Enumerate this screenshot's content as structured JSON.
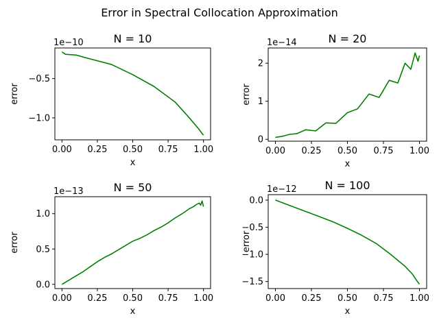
{
  "figure": {
    "suptitle": "Error in Spectral Collocation Approximation"
  },
  "colors": {
    "line": "#008000",
    "axes": "#000000",
    "background": "#ffffff"
  },
  "chart_data": [
    {
      "type": "line",
      "title": "N = 10",
      "xlabel": "x",
      "ylabel": "error",
      "offset_text": "1e−10",
      "xlim": [
        -0.05,
        1.05
      ],
      "ylim": [
        -1.28,
        -0.11
      ],
      "xticks": [
        0.0,
        0.25,
        0.5,
        0.75,
        1.0
      ],
      "xtick_labels": [
        "0.00",
        "0.25",
        "0.50",
        "0.75",
        "1.00"
      ],
      "yticks": [
        -0.5,
        -1.0
      ],
      "ytick_labels": [
        "−0.5",
        "−1.0"
      ],
      "grid": false,
      "series": [
        {
          "color": "#008000",
          "x": [
            0.0,
            0.025,
            0.1,
            0.2,
            0.35,
            0.5,
            0.65,
            0.8,
            0.9,
            0.97,
            0.99,
            1.0
          ],
          "y": [
            -0.16,
            -0.19,
            -0.2,
            -0.25,
            -0.32,
            -0.45,
            -0.6,
            -0.8,
            -1.0,
            -1.15,
            -1.2,
            -1.22
          ]
        }
      ]
    },
    {
      "type": "line",
      "title": "N = 20",
      "xlabel": "x",
      "ylabel": "error",
      "offset_text": "1e−14",
      "xlim": [
        -0.05,
        1.05
      ],
      "ylim": [
        -0.05,
        2.4
      ],
      "xticks": [
        0.0,
        0.25,
        0.5,
        0.75,
        1.0
      ],
      "xtick_labels": [
        "0.00",
        "0.25",
        "0.50",
        "0.75",
        "1.00"
      ],
      "yticks": [
        0,
        1,
        2
      ],
      "ytick_labels": [
        "0",
        "1",
        "2"
      ],
      "grid": false,
      "series": [
        {
          "color": "#008000",
          "x": [
            0.0,
            0.05,
            0.1,
            0.15,
            0.21,
            0.28,
            0.35,
            0.42,
            0.5,
            0.57,
            0.65,
            0.72,
            0.79,
            0.85,
            0.9,
            0.94,
            0.97,
            0.99,
            1.0
          ],
          "y": [
            0.05,
            0.08,
            0.13,
            0.15,
            0.25,
            0.22,
            0.43,
            0.42,
            0.7,
            0.8,
            1.19,
            1.1,
            1.55,
            1.48,
            2.0,
            1.84,
            2.27,
            2.05,
            2.2
          ]
        }
      ]
    },
    {
      "type": "line",
      "title": "N = 50",
      "xlabel": "x",
      "ylabel": "error",
      "offset_text": "1e−13",
      "xlim": [
        -0.05,
        1.05
      ],
      "ylim": [
        -0.06,
        1.24
      ],
      "xticks": [
        0.0,
        0.25,
        0.5,
        0.75,
        1.0
      ],
      "xtick_labels": [
        "0.00",
        "0.25",
        "0.50",
        "0.75",
        "1.00"
      ],
      "yticks": [
        0.0,
        0.5,
        1.0
      ],
      "ytick_labels": [
        "0.0",
        "0.5",
        "1.0"
      ],
      "grid": false,
      "series": [
        {
          "color": "#008000",
          "x": [
            0.0,
            0.05,
            0.1,
            0.15,
            0.2,
            0.25,
            0.3,
            0.35,
            0.4,
            0.45,
            0.5,
            0.55,
            0.6,
            0.65,
            0.7,
            0.75,
            0.8,
            0.85,
            0.9,
            0.93,
            0.95,
            0.97,
            0.98,
            0.99,
            1.0
          ],
          "y": [
            0.0,
            0.06,
            0.12,
            0.18,
            0.25,
            0.32,
            0.38,
            0.43,
            0.49,
            0.55,
            0.61,
            0.65,
            0.7,
            0.76,
            0.81,
            0.87,
            0.94,
            1.0,
            1.07,
            1.1,
            1.13,
            1.15,
            1.12,
            1.18,
            1.1
          ]
        }
      ]
    },
    {
      "type": "line",
      "title": "N = 100",
      "xlabel": "x",
      "ylabel": "error",
      "offset_text": "1e−12",
      "xlim": [
        -0.05,
        1.05
      ],
      "ylim": [
        -1.63,
        0.1
      ],
      "xticks": [
        0.0,
        0.25,
        0.5,
        0.75,
        1.0
      ],
      "xtick_labels": [
        "0.00",
        "0.25",
        "0.50",
        "0.75",
        "1.00"
      ],
      "yticks": [
        0.0,
        -0.5,
        -1.0,
        -1.5
      ],
      "ytick_labels": [
        "0.0",
        "−0.5",
        "−1.0",
        "−1.5"
      ],
      "grid": false,
      "series": [
        {
          "color": "#008000",
          "x": [
            0.0,
            0.1,
            0.2,
            0.3,
            0.4,
            0.5,
            0.6,
            0.7,
            0.8,
            0.9,
            0.95,
            0.98,
            1.0
          ],
          "y": [
            0.0,
            -0.1,
            -0.2,
            -0.3,
            -0.4,
            -0.52,
            -0.65,
            -0.8,
            -1.0,
            -1.22,
            -1.36,
            -1.48,
            -1.55
          ]
        }
      ]
    }
  ]
}
